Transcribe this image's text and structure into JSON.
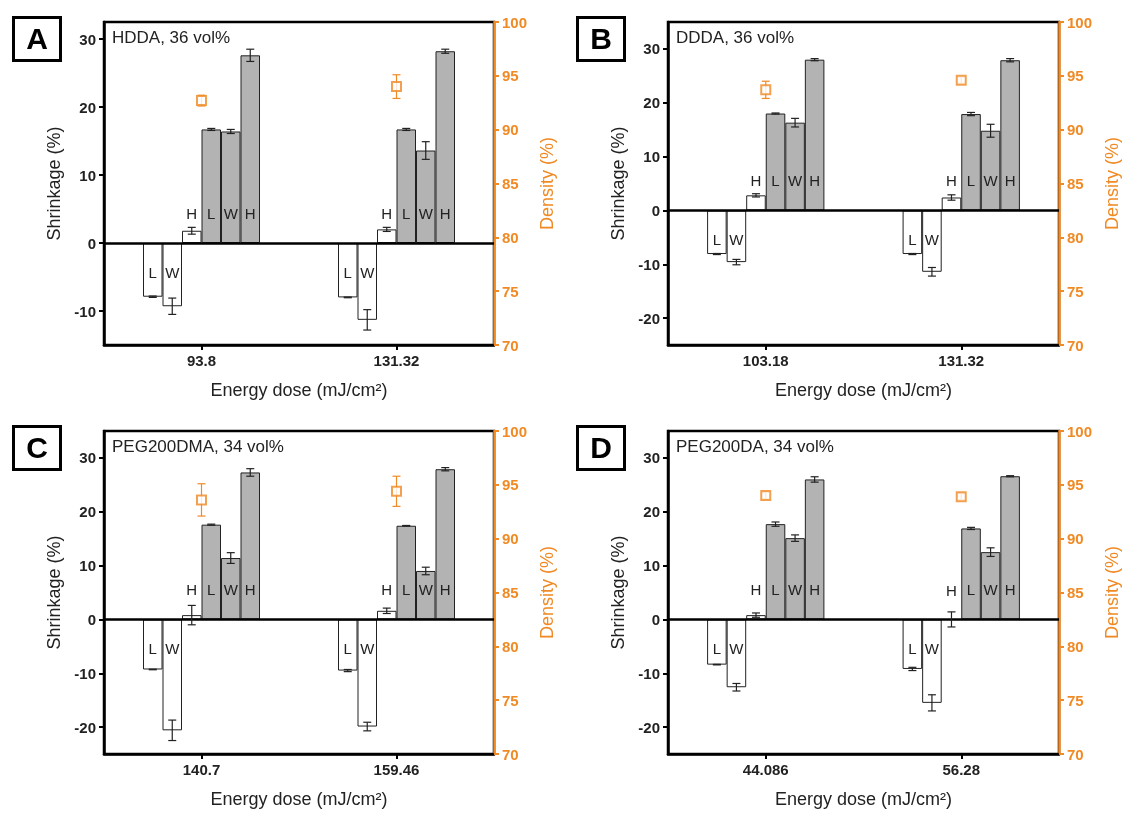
{
  "chart_data": [
    {
      "type": "bar",
      "title": "HDDA, 36 vol%",
      "annotations": [
        "A"
      ],
      "xlabel": "Energy dose (mJ/cm²)",
      "ylabel": "Shrinkage (%)",
      "y2label": "Density (%)",
      "categories": [
        "93.8",
        "131.32"
      ],
      "ylim": [
        -15,
        32.5
      ],
      "yticks": [
        -10,
        0,
        10,
        20,
        30
      ],
      "y2lim": [
        70,
        100
      ],
      "y2ticks": [
        70,
        75,
        80,
        85,
        90,
        95,
        100
      ],
      "marker": "square",
      "ref_lines": [
        {
          "axis": "y",
          "value": 0,
          "color": "#000000"
        }
      ],
      "series": [
        {
          "name": "L",
          "color": "#ffffff",
          "values": [
            -7.9,
            -8.0
          ],
          "errors": [
            0.1,
            0.05
          ]
        },
        {
          "name": "W",
          "color": "#ffffff",
          "values": [
            -9.3,
            -11.3
          ],
          "errors": [
            1.2,
            1.5
          ]
        },
        {
          "name": "H",
          "color": "#ffffff",
          "values": [
            1.8,
            2.0
          ],
          "errors": [
            0.5,
            0.3
          ]
        },
        {
          "name": "L",
          "color": "#b3b3b3",
          "values": [
            16.7,
            16.7
          ],
          "errors": [
            0.15,
            0.15
          ]
        },
        {
          "name": "W",
          "color": "#b3b3b3",
          "values": [
            16.4,
            13.6
          ],
          "errors": [
            0.3,
            1.3
          ]
        },
        {
          "name": "H",
          "color": "#b3b3b3",
          "values": [
            27.6,
            28.2
          ],
          "errors": [
            0.9,
            0.3
          ]
        },
        {
          "type": "scatter",
          "axis": "y2",
          "color": "#f08a24",
          "values": [
            92.7,
            94.0
          ],
          "errors": [
            0.5,
            1.1
          ]
        }
      ]
    },
    {
      "type": "bar",
      "title": "DDDA, 36 vol%",
      "annotations": [
        "B"
      ],
      "xlabel": "Energy dose (mJ/cm²)",
      "ylabel": "Shrinkage (%)",
      "y2label": "Density (%)",
      "categories": [
        "103.18",
        "131.32"
      ],
      "ylim": [
        -25,
        35
      ],
      "yticks": [
        -20,
        -10,
        0,
        10,
        20,
        30
      ],
      "y2lim": [
        70,
        100
      ],
      "y2ticks": [
        70,
        75,
        80,
        85,
        90,
        95,
        100
      ],
      "marker": "square",
      "ref_lines": [
        {
          "axis": "y",
          "value": 0,
          "color": "#000000"
        }
      ],
      "series": [
        {
          "name": "L",
          "color": "#ffffff",
          "values": [
            -8.1,
            -8.1
          ],
          "errors": [
            0.1,
            0.1
          ]
        },
        {
          "name": "W",
          "color": "#ffffff",
          "values": [
            -9.6,
            -11.4
          ],
          "errors": [
            0.5,
            0.8
          ]
        },
        {
          "name": "H",
          "color": "#ffffff",
          "values": [
            2.8,
            2.4
          ],
          "errors": [
            0.3,
            0.5
          ]
        },
        {
          "name": "L",
          "color": "#b3b3b3",
          "values": [
            18.0,
            17.9
          ],
          "errors": [
            0.1,
            0.3
          ]
        },
        {
          "name": "W",
          "color": "#b3b3b3",
          "values": [
            16.3,
            14.8
          ],
          "errors": [
            0.8,
            1.2
          ]
        },
        {
          "name": "H",
          "color": "#b3b3b3",
          "values": [
            28.0,
            27.9
          ],
          "errors": [
            0.2,
            0.3
          ]
        },
        {
          "type": "scatter",
          "axis": "y2",
          "color": "#f08a24",
          "values": [
            93.7,
            94.6
          ],
          "errors": [
            0.8,
            0.3
          ]
        }
      ]
    },
    {
      "type": "bar",
      "title": "PEG200DMA, 34 vol%",
      "annotations": [
        "C"
      ],
      "xlabel": "Energy dose (mJ/cm²)",
      "ylabel": "Shrinkage (%)",
      "y2label": "Density (%)",
      "categories": [
        "140.7",
        "159.46"
      ],
      "ylim": [
        -25,
        35
      ],
      "yticks": [
        -20,
        -10,
        0,
        10,
        20,
        30
      ],
      "y2lim": [
        70,
        100
      ],
      "y2ticks": [
        70,
        75,
        80,
        85,
        90,
        95,
        100
      ],
      "marker": "square",
      "ref_lines": [
        {
          "axis": "y",
          "value": 0,
          "color": "#000000"
        }
      ],
      "series": [
        {
          "name": "L",
          "color": "#ffffff",
          "values": [
            -9.3,
            -9.5
          ],
          "errors": [
            0.05,
            0.2
          ]
        },
        {
          "name": "W",
          "color": "#ffffff",
          "values": [
            -20.6,
            -19.9
          ],
          "errors": [
            1.9,
            0.8
          ]
        },
        {
          "name": "H",
          "color": "#ffffff",
          "values": [
            0.8,
            1.6
          ],
          "errors": [
            1.8,
            0.5
          ]
        },
        {
          "name": "L",
          "color": "#b3b3b3",
          "values": [
            17.6,
            17.4
          ],
          "errors": [
            0.1,
            0.05
          ]
        },
        {
          "name": "W",
          "color": "#b3b3b3",
          "values": [
            11.4,
            9.0
          ],
          "errors": [
            1.0,
            0.7
          ]
        },
        {
          "name": "H",
          "color": "#b3b3b3",
          "values": [
            27.3,
            27.9
          ],
          "errors": [
            0.7,
            0.3
          ]
        },
        {
          "type": "scatter",
          "axis": "y2",
          "color": "#f08a24",
          "values": [
            93.6,
            94.4
          ],
          "errors": [
            1.5,
            1.4
          ]
        }
      ]
    },
    {
      "type": "bar",
      "title": "PEG200DA, 34 vol%",
      "annotations": [
        "D"
      ],
      "xlabel": "Energy dose (mJ/cm²)",
      "ylabel": "Shrinkage (%)",
      "y2label": "Density (%)",
      "categories": [
        "44.086",
        "56.28"
      ],
      "ylim": [
        -25,
        35
      ],
      "yticks": [
        -20,
        -10,
        0,
        10,
        20,
        30
      ],
      "y2lim": [
        70,
        100
      ],
      "y2ticks": [
        70,
        75,
        80,
        85,
        90,
        95,
        100
      ],
      "marker": "square",
      "ref_lines": [
        {
          "axis": "y",
          "value": 0,
          "color": "#000000"
        }
      ],
      "series": [
        {
          "name": "L",
          "color": "#ffffff",
          "values": [
            -8.4,
            -9.2
          ],
          "errors": [
            0.05,
            0.3
          ]
        },
        {
          "name": "W",
          "color": "#ffffff",
          "values": [
            -12.6,
            -15.5
          ],
          "errors": [
            0.7,
            1.5
          ]
        },
        {
          "name": "H",
          "color": "#ffffff",
          "values": [
            0.8,
            0.0
          ],
          "errors": [
            0.4,
            1.4
          ]
        },
        {
          "name": "L",
          "color": "#b3b3b3",
          "values": [
            17.7,
            16.9
          ],
          "errors": [
            0.4,
            0.2
          ]
        },
        {
          "name": "W",
          "color": "#b3b3b3",
          "values": [
            15.1,
            12.5
          ],
          "errors": [
            0.6,
            0.8
          ]
        },
        {
          "name": "H",
          "color": "#b3b3b3",
          "values": [
            26.0,
            26.6
          ],
          "errors": [
            0.5,
            0.1
          ]
        },
        {
          "type": "scatter",
          "axis": "y2",
          "color": "#f08a24",
          "values": [
            94.0,
            93.9
          ],
          "errors": [
            0.3,
            0.3
          ]
        }
      ]
    }
  ]
}
